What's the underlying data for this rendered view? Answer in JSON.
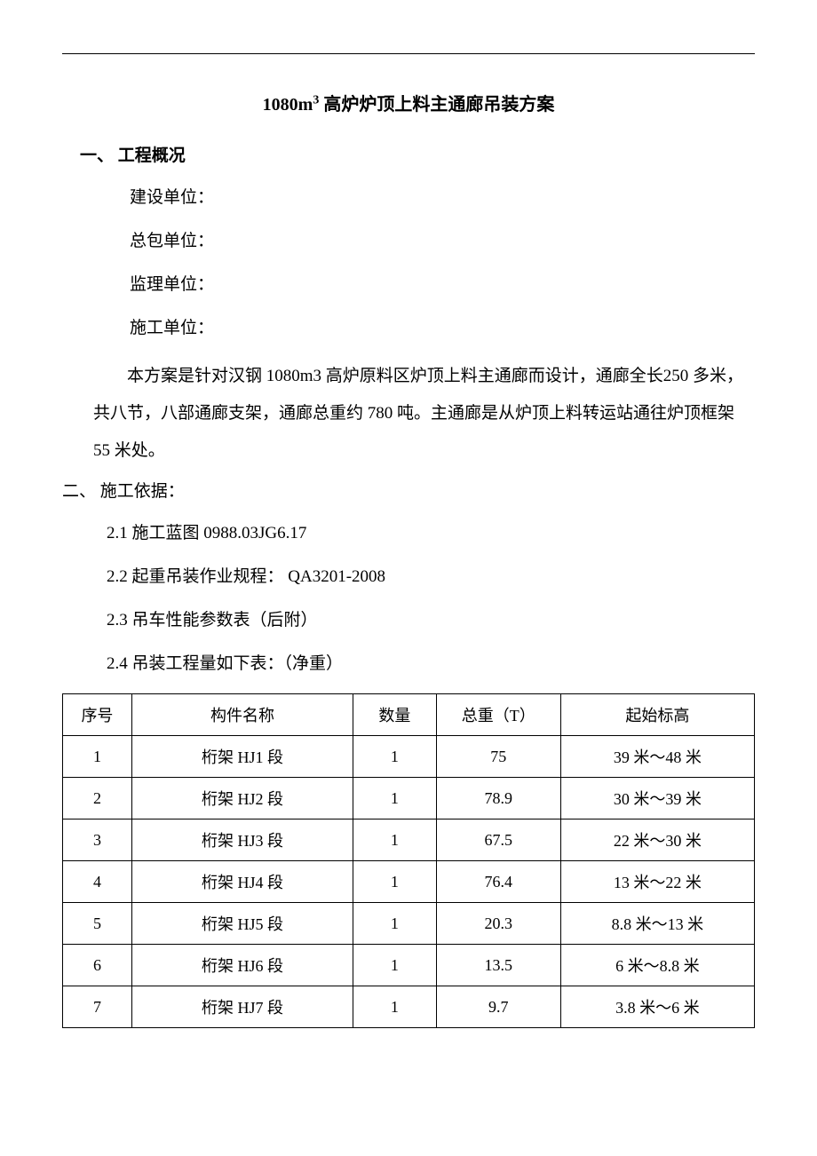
{
  "title_prefix": "1080m",
  "title_sup": "3",
  "title_suffix": " 高炉炉顶上料主通廊吊装方案",
  "section1": {
    "header": "一、 工程概况",
    "fields": {
      "construction_unit": "建设单位：",
      "general_contractor": "总包单位：",
      "supervision_unit": "监理单位：",
      "construction_company": "施工单位："
    },
    "body": "本方案是针对汉钢 1080m3 高炉原料区炉顶上料主通廊而设计，通廊全长250 多米，共八节，八部通廊支架，通廊总重约 780 吨。主通廊是从炉顶上料转运站通往炉顶框架 55 米处。"
  },
  "section2": {
    "header": "二、 施工依据：",
    "items": {
      "item1": "2.1 施工蓝图 0988.03JG6.17",
      "item2": "2.2 起重吊装作业规程：  QA3201-2008",
      "item3": "2.3 吊车性能参数表（后附）",
      "item4": "2.4 吊装工程量如下表：（净重）"
    }
  },
  "table": {
    "headers": {
      "seq": "序号",
      "name": "构件名称",
      "qty": "数量",
      "weight": "总重（T）",
      "height": "起始标高"
    },
    "rows": [
      {
        "seq": "1",
        "name": "桁架 HJ1 段",
        "qty": "1",
        "weight": "75",
        "height": "39 米～48 米"
      },
      {
        "seq": "2",
        "name": "桁架 HJ2 段",
        "qty": "1",
        "weight": "78.9",
        "height": "30 米～39 米"
      },
      {
        "seq": "3",
        "name": "桁架 HJ3 段",
        "qty": "1",
        "weight": "67.5",
        "height": "22 米～30 米"
      },
      {
        "seq": "4",
        "name": "桁架 HJ4 段",
        "qty": "1",
        "weight": "76.4",
        "height": "13 米～22 米"
      },
      {
        "seq": "5",
        "name": "桁架 HJ5 段",
        "qty": "1",
        "weight": "20.3",
        "height": "8.8 米～13 米"
      },
      {
        "seq": "6",
        "name": "桁架 HJ6 段",
        "qty": "1",
        "weight": "13.5",
        "height": "6 米～8.8 米"
      },
      {
        "seq": "7",
        "name": "桁架 HJ7 段",
        "qty": "1",
        "weight": "9.7",
        "height": "3.8 米～6 米"
      }
    ]
  }
}
